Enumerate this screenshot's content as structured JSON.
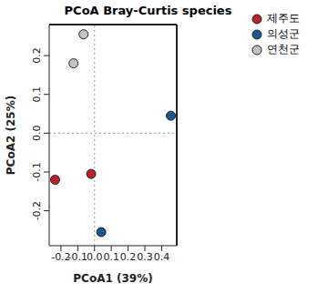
{
  "chart_data": {
    "type": "scatter",
    "title": "PCoA Bray-Curtis species",
    "x_label": "PCoA1 (39%)",
    "y_label": "PCoA2 (25%)",
    "xlim": [
      -0.27,
      0.49
    ],
    "ylim": [
      -0.29,
      0.28
    ],
    "xticks": [
      -0.2,
      -0.1,
      {
        "value": 0,
        "label": "0.0"
      },
      0.1,
      0.2,
      0.3,
      0.4
    ],
    "yticks": [
      -0.2,
      -0.1,
      {
        "value": 0,
        "label": "0.0"
      },
      0.1,
      0.2
    ],
    "legend": "right",
    "marker": "circle",
    "series": [
      {
        "name": "제주도",
        "color": "#b8232b",
        "x": [
          -0.235,
          -0.02
        ],
        "values": [
          -0.12,
          -0.105
        ]
      },
      {
        "name": "의성군",
        "color": "#1c5690",
        "x": [
          0.455,
          0.04
        ],
        "values": [
          0.045,
          -0.255
        ]
      },
      {
        "name": "연천군",
        "color": "#c4c4c4",
        "x": [
          -0.065,
          -0.125
        ],
        "values": [
          0.255,
          0.18
        ]
      }
    ]
  }
}
